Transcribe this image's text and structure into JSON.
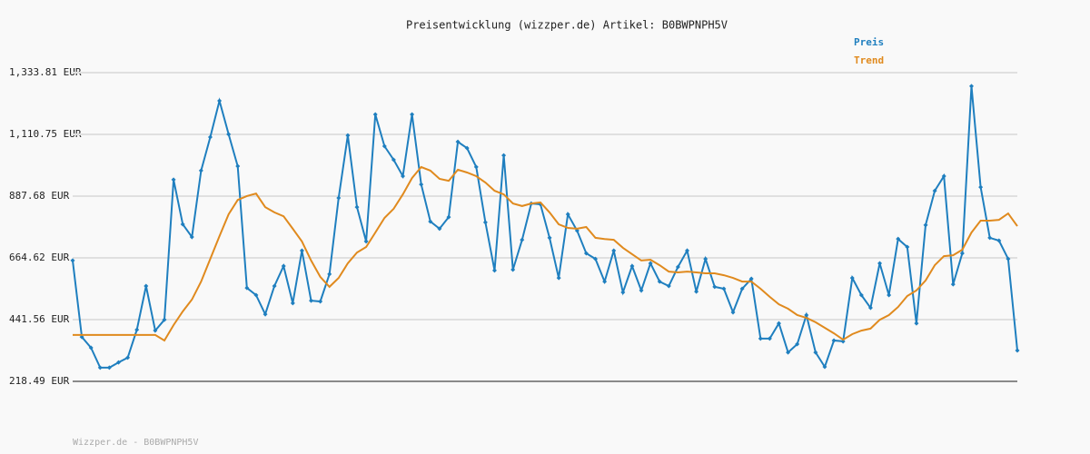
{
  "chart_data": {
    "type": "line",
    "title": "Preisentwicklung (wizzper.de) Artikel: B0BWPNPH5V",
    "footer": "Wizzper.de - B0BWPNPH5V",
    "ylim": [
      218.49,
      1333.81
    ],
    "yticks": [
      {
        "value": 218.49,
        "label": "218.49 EUR"
      },
      {
        "value": 441.56,
        "label": "441.56 EUR"
      },
      {
        "value": 664.62,
        "label": "664.62 EUR"
      },
      {
        "value": 887.68,
        "label": "887.68 EUR"
      },
      {
        "value": 1110.75,
        "label": "1,110.75 EUR"
      },
      {
        "value": 1333.81,
        "label": "1,333.81 EUR"
      }
    ],
    "grid": true,
    "legend": "top-right",
    "series": [
      {
        "name": "Preis",
        "color": "#1f7fbf",
        "markers": true,
        "values": [
          655,
          379,
          340,
          268,
          268,
          287,
          304,
          405,
          563,
          402,
          441,
          947,
          786,
          740,
          980,
          1101,
          1232,
          1111,
          996,
          556,
          530,
          461,
          563,
          635,
          501,
          691,
          510,
          507,
          606,
          881,
          1107,
          848,
          724,
          1183,
          1068,
          1019,
          960,
          1183,
          930,
          796,
          770,
          812,
          1084,
          1061,
          993,
          793,
          619,
          1035,
          622,
          730,
          861,
          858,
          737,
          592,
          822,
          763,
          681,
          661,
          579,
          691,
          540,
          635,
          547,
          645,
          579,
          563,
          632,
          691,
          543,
          661,
          560,
          553,
          468,
          553,
          589,
          373,
          373,
          428,
          323,
          353,
          458,
          323,
          271,
          366,
          363,
          592,
          530,
          484,
          645,
          530,
          733,
          704,
          428,
          783,
          907,
          960,
          569,
          681,
          1285,
          920,
          737,
          727,
          661,
          330
        ]
      },
      {
        "name": "Trend",
        "color": "#e08a1e",
        "markers": false,
        "values": [
          386,
          386,
          386,
          386,
          386,
          386,
          386,
          386,
          386,
          386,
          366,
          422,
          471,
          514,
          579,
          661,
          743,
          822,
          874,
          888,
          897,
          848,
          829,
          815,
          770,
          724,
          655,
          596,
          560,
          592,
          645,
          684,
          704,
          756,
          809,
          842,
          894,
          953,
          993,
          980,
          950,
          943,
          983,
          973,
          960,
          937,
          907,
          894,
          861,
          852,
          861,
          865,
          829,
          786,
          773,
          770,
          776,
          737,
          733,
          730,
          701,
          678,
          655,
          658,
          638,
          615,
          612,
          615,
          612,
          609,
          609,
          602,
          592,
          579,
          579,
          553,
          524,
          497,
          481,
          458,
          448,
          432,
          412,
          392,
          369,
          389,
          402,
          409,
          441,
          458,
          487,
          527,
          547,
          583,
          638,
          671,
          674,
          694,
          756,
          799,
          799,
          802,
          825,
          779
        ]
      }
    ]
  }
}
